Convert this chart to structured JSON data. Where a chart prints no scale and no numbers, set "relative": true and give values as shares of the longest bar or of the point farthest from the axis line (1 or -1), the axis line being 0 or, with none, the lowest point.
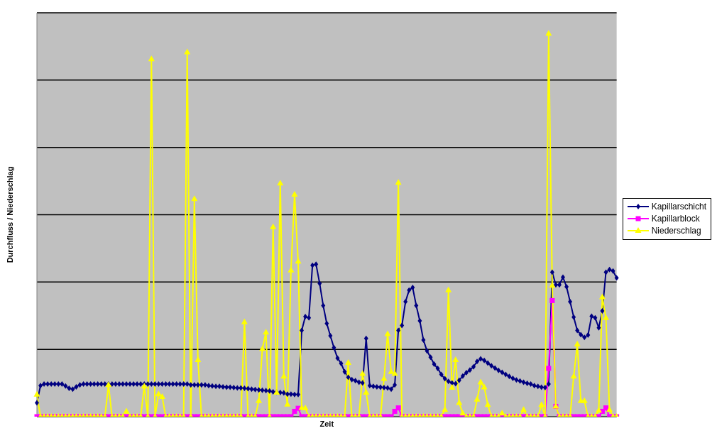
{
  "chart_data": {
    "type": "line",
    "xlabel": "Zeit",
    "ylabel": "Durchfluss / Niederschlag",
    "relative": true,
    "grid": "y",
    "legend": "right",
    "categories": [
      null,
      null,
      null,
      null,
      null,
      null,
      null,
      null,
      null,
      null,
      null,
      null,
      null,
      null,
      null,
      null,
      null,
      null,
      null,
      null,
      null,
      null,
      null,
      null,
      null,
      null,
      null,
      null,
      null,
      null,
      null,
      null,
      null,
      null,
      null,
      null,
      null,
      null,
      null,
      null,
      null,
      null,
      null,
      null,
      null,
      null,
      null,
      null,
      null,
      null,
      null,
      null,
      null,
      null,
      null,
      null,
      null,
      null,
      null,
      null,
      null,
      null,
      null,
      null,
      null,
      null,
      null,
      null,
      null,
      null,
      null,
      null,
      null,
      null,
      null,
      null,
      null,
      null,
      null,
      null,
      null,
      null,
      null,
      null,
      null,
      null,
      null,
      null,
      null,
      null,
      null,
      null,
      null,
      null,
      null,
      null,
      null,
      null,
      null,
      null,
      null,
      null,
      null,
      null,
      null,
      null,
      null,
      null,
      null,
      null,
      null,
      null,
      null,
      null,
      null,
      null,
      null,
      null,
      null,
      null,
      null,
      null,
      null,
      null,
      null,
      null,
      null,
      null,
      null,
      null,
      null,
      null,
      null,
      null,
      null,
      null,
      null,
      null,
      null,
      null,
      null,
      null,
      null,
      null,
      null,
      null,
      null,
      null,
      null,
      null,
      null,
      null,
      null,
      null,
      null,
      null,
      null,
      null,
      null,
      null,
      null,
      null,
      null
    ],
    "series": [
      {
        "name": "Kapillarschicht",
        "color": "#000080",
        "marker": "diamond",
        "values": [
          0.036,
          0.081,
          0.085,
          0.085,
          0.085,
          0.085,
          0.085,
          0.085,
          0.08,
          0.074,
          0.072,
          0.078,
          0.083,
          0.085,
          0.085,
          0.085,
          0.085,
          0.085,
          0.085,
          0.085,
          0.085,
          0.085,
          0.085,
          0.085,
          0.085,
          0.085,
          0.085,
          0.085,
          0.085,
          0.085,
          0.085,
          0.085,
          0.085,
          0.085,
          0.085,
          0.085,
          0.085,
          0.085,
          0.085,
          0.085,
          0.085,
          0.085,
          0.085,
          0.083,
          0.083,
          0.083,
          0.083,
          0.083,
          0.081,
          0.08,
          0.079,
          0.079,
          0.078,
          0.077,
          0.077,
          0.076,
          0.075,
          0.075,
          0.074,
          0.073,
          0.072,
          0.071,
          0.07,
          0.069,
          0.068,
          0.067,
          0.065,
          0.064,
          0.063,
          0.062,
          0.059,
          0.059,
          0.058,
          0.058,
          0.225,
          0.261,
          0.258,
          0.395,
          0.398,
          0.348,
          0.29,
          0.243,
          0.211,
          0.18,
          0.153,
          0.139,
          0.117,
          0.103,
          0.097,
          0.094,
          0.09,
          0.088,
          0.204,
          0.081,
          0.079,
          0.078,
          0.077,
          0.076,
          0.075,
          0.072,
          0.083,
          0.225,
          0.238,
          0.3,
          0.33,
          0.337,
          0.29,
          0.25,
          0.2,
          0.172,
          0.155,
          0.137,
          0.126,
          0.11,
          0.099,
          0.092,
          0.088,
          0.086,
          0.095,
          0.106,
          0.115,
          0.122,
          0.13,
          0.144,
          0.151,
          0.147,
          0.14,
          0.133,
          0.127,
          0.121,
          0.116,
          0.11,
          0.105,
          0.1,
          0.096,
          0.093,
          0.09,
          0.087,
          0.085,
          0.081,
          0.079,
          0.077,
          0.076,
          0.085,
          0.377,
          0.344,
          0.344,
          0.364,
          0.339,
          0.3,
          0.26,
          0.225,
          0.214,
          0.207,
          0.213,
          0.262,
          0.258,
          0.232,
          0.276,
          0.377,
          0.384,
          0.38,
          0.362
        ]
      },
      {
        "name": "Kapillarblock",
        "color": "#ff00ff",
        "marker": "square",
        "values": [
          0,
          0,
          0,
          0,
          0,
          0,
          0,
          0,
          0,
          0,
          0,
          0,
          0,
          0,
          0,
          0,
          0,
          0,
          0,
          0,
          0,
          0,
          0,
          0,
          0,
          0,
          0,
          0,
          0,
          0,
          0,
          0,
          0,
          0,
          0,
          0,
          0,
          0,
          0,
          0,
          0,
          0,
          0,
          0,
          0,
          0,
          0,
          0,
          0,
          0,
          0,
          0,
          0,
          0,
          0,
          0,
          0,
          0,
          0,
          0,
          0,
          0,
          0,
          0,
          0,
          0,
          0,
          0,
          0,
          0,
          0,
          0,
          0.014,
          0.022,
          0,
          0,
          0,
          0,
          0,
          0,
          0,
          0,
          0,
          0,
          0,
          0,
          0,
          0,
          0,
          0,
          0,
          0,
          0,
          0,
          0,
          0,
          0,
          0,
          0,
          0,
          0.014,
          0.023,
          0,
          0,
          0,
          0,
          0,
          0,
          0,
          0,
          0,
          0,
          0,
          0,
          0,
          0,
          0,
          0,
          0,
          0,
          0,
          0,
          0,
          0,
          0,
          0,
          0,
          0,
          0,
          0,
          0,
          0,
          0,
          0,
          0,
          0,
          0,
          0,
          0,
          0,
          0,
          0,
          0,
          0.126,
          0.303,
          0.027,
          0,
          0,
          0,
          0,
          0,
          0,
          0,
          0,
          0,
          0,
          0,
          0,
          0.014,
          0.023,
          0,
          0,
          0
        ]
      },
      {
        "name": "Niederschlag",
        "color": "#ffff00",
        "marker": "triangle",
        "values": [
          0.058,
          0,
          0,
          0,
          0,
          0,
          0,
          0,
          0,
          0,
          0,
          0,
          0,
          0,
          0,
          0,
          0,
          0,
          0,
          0,
          0.083,
          0,
          0,
          0,
          0,
          0.014,
          0,
          0,
          0,
          0,
          0.079,
          0,
          0.933,
          0,
          0.059,
          0.052,
          0,
          0,
          0,
          0,
          0,
          0,
          0.951,
          0,
          0.568,
          0.148,
          0,
          0,
          0,
          0,
          0,
          0,
          0,
          0,
          0,
          0,
          0,
          0,
          0.247,
          0,
          0,
          0,
          0.041,
          0.177,
          0.22,
          0,
          0.495,
          0.063,
          0.609,
          0.105,
          0.032,
          0.382,
          0.58,
          0.405,
          0.023,
          0.022,
          0,
          0,
          0,
          0,
          0,
          0,
          0,
          0,
          0,
          0,
          0,
          0.141,
          0,
          0,
          0,
          0.112,
          0.063,
          0,
          0,
          0,
          0,
          0.099,
          0.216,
          0.117,
          0.112,
          0.611,
          0,
          0,
          0,
          0,
          0,
          0,
          0,
          0,
          0,
          0,
          0,
          0,
          0.018,
          0.33,
          0.076,
          0.148,
          0.036,
          0.009,
          0,
          0,
          0,
          0.045,
          0.09,
          0.077,
          0.031,
          0,
          0,
          0,
          0.009,
          0,
          0,
          0,
          0,
          0,
          0.018,
          0,
          0,
          0,
          0,
          0.031,
          0,
          1.0,
          0.342,
          0.027,
          0,
          0,
          0,
          0,
          0.105,
          0.189,
          0.041,
          0.041,
          0,
          0,
          0,
          0.016,
          0.312,
          0.258,
          0.018,
          0,
          0
        ]
      }
    ]
  }
}
